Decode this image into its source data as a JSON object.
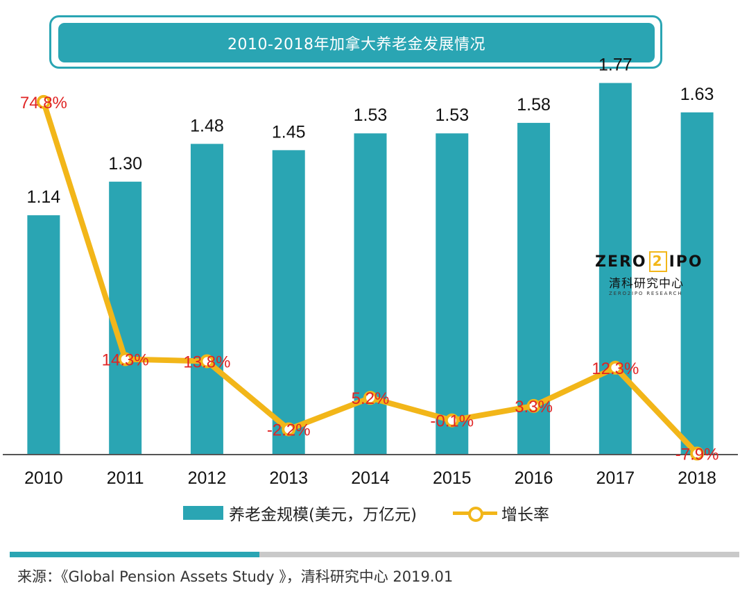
{
  "title": "2010-2018年加拿大养老金发展情况",
  "chart_data": {
    "type": "bar",
    "categories": [
      "2010",
      "2011",
      "2012",
      "2013",
      "2014",
      "2015",
      "2016",
      "2017",
      "2018"
    ],
    "series": [
      {
        "name": "养老金规模(美元，万亿元)",
        "type": "bar",
        "values": [
          1.14,
          1.3,
          1.48,
          1.45,
          1.53,
          1.53,
          1.58,
          1.77,
          1.63
        ],
        "labels": [
          "1.14",
          "1.30",
          "1.48",
          "1.45",
          "1.53",
          "1.53",
          "1.58",
          "1.77",
          "1.63"
        ]
      },
      {
        "name": "增长率",
        "type": "line",
        "values": [
          74.8,
          14.3,
          13.8,
          -2.2,
          5.2,
          -0.1,
          3.3,
          12.3,
          -7.9
        ],
        "labels": [
          "74.8%",
          "14.3%",
          "13.8%",
          "-2.2%",
          "5.2%",
          "-0.1%",
          "3.3%",
          "12.3%",
          "-7.9%"
        ]
      }
    ],
    "bar_axis_range": [
      0,
      2.0
    ],
    "line_axis_range": [
      -15,
      80
    ],
    "grid": false,
    "legend_position": "bottom"
  },
  "colors": {
    "bar": "#2aa5b3",
    "line": "#f2b619",
    "line_label": "#e02424",
    "axis": "#555555"
  },
  "legend": {
    "bar_label": "养老金规模(美元，万亿元)",
    "line_label": "增长率"
  },
  "logo": {
    "word_left": "ZERO",
    "word_mid": "2",
    "word_right": "IPO",
    "cn": "清科研究中心",
    "en": "ZERO2IPO RESEARCH"
  },
  "source": "来源：《Global Pension Assets Study 》，清科研究中心 2019.01"
}
